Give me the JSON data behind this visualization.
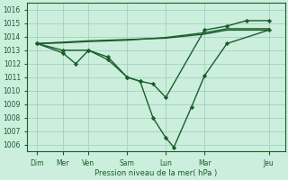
{
  "background_color": "#cceedd",
  "grid_color": "#99ccbb",
  "line_color": "#1a5e2a",
  "marker_color": "#1a5e2a",
  "xlabel": "Pression niveau de la mer( hPa )",
  "ylim": [
    1005.5,
    1016.5
  ],
  "ytick_vals": [
    1006,
    1007,
    1008,
    1009,
    1010,
    1011,
    1012,
    1013,
    1014,
    1015,
    1016
  ],
  "xlim": [
    0,
    8.0
  ],
  "xtick_positions": [
    0.3,
    1.1,
    1.9,
    3.1,
    4.3,
    5.5,
    7.5
  ],
  "xtick_labels": [
    "Dim",
    "Mer",
    "Ven",
    "Sam",
    "Lun",
    "Mar",
    "Jeu"
  ],
  "series": [
    {
      "x": [
        0.3,
        1.1,
        1.9,
        2.5,
        3.1,
        3.5,
        3.9,
        4.3,
        4.55,
        5.1,
        5.5,
        6.2,
        7.5
      ],
      "y": [
        1013.5,
        1013.0,
        1013.0,
        1012.5,
        1011.0,
        1010.7,
        1008.0,
        1006.5,
        1005.8,
        1008.8,
        1011.1,
        1013.5,
        1014.5
      ],
      "marker": "D",
      "markersize": 2.2,
      "linewidth": 1.0
    },
    {
      "x": [
        0.3,
        1.1,
        1.5,
        1.9,
        2.5,
        3.1,
        3.5,
        3.9,
        4.3,
        5.5,
        6.2,
        6.8,
        7.5
      ],
      "y": [
        1013.5,
        1012.8,
        1012.0,
        1013.0,
        1012.3,
        1011.0,
        1010.7,
        1010.5,
        1009.5,
        1014.5,
        1014.8,
        1015.2,
        1015.2
      ],
      "marker": "D",
      "markersize": 2.2,
      "linewidth": 1.0
    },
    {
      "x": [
        0.3,
        1.1,
        1.9,
        3.1,
        4.3,
        5.5,
        6.2,
        7.5
      ],
      "y": [
        1013.5,
        1013.6,
        1013.7,
        1013.8,
        1013.9,
        1014.2,
        1014.5,
        1014.5
      ],
      "marker": null,
      "markersize": 0,
      "linewidth": 1.0
    },
    {
      "x": [
        0.3,
        1.1,
        1.9,
        3.1,
        4.3,
        5.5,
        6.2,
        7.5
      ],
      "y": [
        1013.5,
        1013.55,
        1013.65,
        1013.75,
        1013.95,
        1014.3,
        1014.6,
        1014.6
      ],
      "marker": null,
      "markersize": 0,
      "linewidth": 1.0
    }
  ],
  "extra_markers": {
    "series_idx": 1,
    "points": [
      [
        6.2,
        1015.5
      ],
      [
        7.0,
        1015.8
      ],
      [
        7.5,
        1015.2
      ]
    ]
  }
}
